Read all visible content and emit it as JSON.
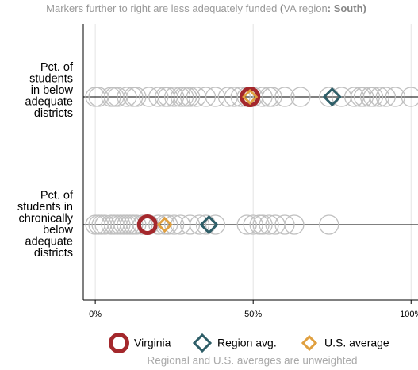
{
  "chart_data": {
    "type": "dot",
    "title_parts": [
      {
        "text": "Markers further to right are less adequately funded ",
        "bold": false
      },
      {
        "text": "(",
        "bold": true
      },
      {
        "text": "VA region",
        "bold": false
      },
      {
        "text": ": South)",
        "bold": true
      }
    ],
    "categories": [
      [
        "Pct. of",
        "students",
        "in below",
        "adequate",
        "districts"
      ],
      [
        "Pct. of",
        "students in",
        "chronically",
        "below",
        "adequate",
        "districts"
      ]
    ],
    "states": {
      "color": "#c0c0c0",
      "values": [
        [
          0,
          1,
          5,
          6,
          7,
          10,
          12,
          13,
          17,
          20,
          22,
          23,
          25,
          27,
          28,
          29,
          30,
          32,
          35,
          38,
          42,
          44,
          46,
          48,
          50,
          53,
          55,
          56,
          60,
          65,
          74,
          78,
          82,
          84,
          85,
          87,
          88,
          90,
          92,
          95,
          100
        ],
        [
          0,
          1,
          2,
          3,
          5,
          6,
          7,
          8,
          9,
          10,
          11,
          12,
          13,
          15,
          17,
          20,
          22,
          23,
          25,
          27,
          30,
          33,
          35,
          38,
          48,
          50,
          52,
          53,
          55,
          57,
          60,
          63,
          74
        ]
      ]
    },
    "series": [
      {
        "name": "Virginia",
        "color": "#a4282c",
        "marker": "circle",
        "values": [
          49,
          16.5
        ]
      },
      {
        "name": "Region avg.",
        "color": "#2e5e68",
        "marker": "diamond",
        "values": [
          75,
          36
        ]
      },
      {
        "name": "U.S. average",
        "color": "#e0a040",
        "marker": "small-diamond",
        "values": [
          49,
          22
        ]
      }
    ],
    "xlim": [
      -3.8,
      102.2
    ],
    "xticks": [
      {
        "value": 0,
        "label": "0%"
      },
      {
        "value": 50,
        "label": "50%"
      },
      {
        "value": 100,
        "label": "100%"
      }
    ],
    "grid": true,
    "note": "Regional and U.S. averages are unweighted"
  }
}
